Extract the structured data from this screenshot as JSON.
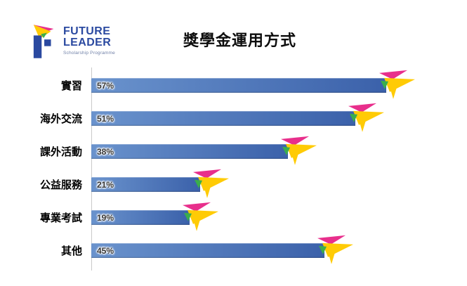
{
  "header": {
    "logo": {
      "title_line1": "FUTURE",
      "title_line2": "LEADER",
      "subtitle": "Scholarship Programme",
      "colors": {
        "blue": "#2a49a0"
      }
    },
    "title": "獎學金運用方式"
  },
  "chart_data": {
    "type": "bar",
    "orientation": "horizontal",
    "title": "獎學金運用方式",
    "categories": [
      "實習",
      "海外交流",
      "課外活動",
      "公益服務",
      "專業考試",
      "其他"
    ],
    "values": [
      57,
      51,
      38,
      21,
      19,
      45
    ],
    "labels": [
      "57%",
      "51%",
      "38%",
      "21%",
      "19%",
      "45%"
    ],
    "value_suffix": "%",
    "xlim": [
      0,
      60
    ],
    "xlabel": "",
    "ylabel": "",
    "grid": false,
    "legend": false,
    "axis_line_color": "#c9c9c9",
    "bar_colors": {
      "start": "#6a93cd",
      "end": "#3b61aa"
    },
    "marker": "paper-plane",
    "marker_colors": {
      "pink": "#e82f8c",
      "yellow": "#ffcb05",
      "green": "#3aae4c"
    }
  }
}
